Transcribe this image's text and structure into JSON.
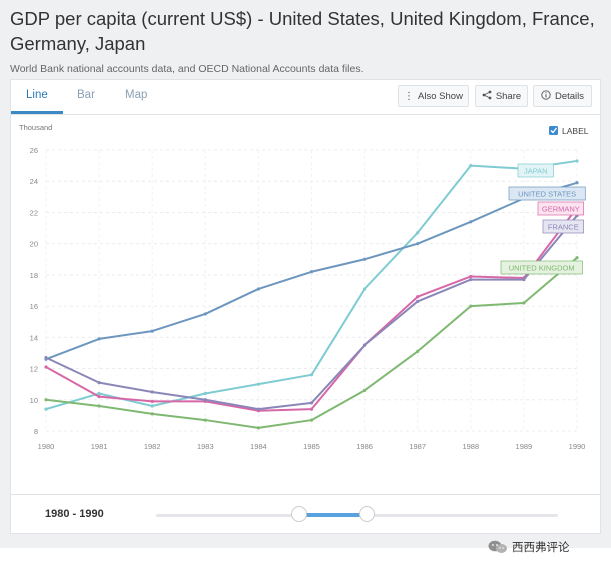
{
  "header": {
    "title": "GDP per capita (current US$) - United States, United Kingdom, France, Germany, Japan",
    "subtitle": "World Bank national accounts data, and OECD National Accounts data files."
  },
  "tabs": [
    {
      "label": "Line",
      "active": true
    },
    {
      "label": "Bar",
      "active": false
    },
    {
      "label": "Map",
      "active": false
    }
  ],
  "toolbar": {
    "also_show": "Also Show",
    "share": "Share",
    "details": "Details"
  },
  "label_toggle": {
    "text": "LABEL",
    "checked": true
  },
  "chart_data": {
    "type": "line",
    "ylabel": "Thousand",
    "x": [
      1980,
      1981,
      1982,
      1983,
      1984,
      1985,
      1986,
      1987,
      1988,
      1989,
      1990
    ],
    "ylim": [
      8,
      26
    ],
    "yticks": [
      8,
      10,
      12,
      14,
      16,
      18,
      20,
      22,
      24,
      26
    ],
    "grid": true,
    "series": [
      {
        "name": "JAPAN",
        "color": "#7fcbd2",
        "values": [
          9.4,
          10.4,
          9.6,
          10.4,
          11.0,
          11.6,
          17.1,
          20.7,
          25.0,
          24.8,
          25.3
        ]
      },
      {
        "name": "UNITED STATES",
        "color": "#6d96bf",
        "values": [
          12.6,
          13.9,
          14.4,
          15.5,
          17.1,
          18.2,
          19.0,
          20.0,
          21.4,
          22.9,
          23.9
        ]
      },
      {
        "name": "GERMANY",
        "color": "#d768a8",
        "values": [
          12.1,
          10.2,
          9.9,
          9.9,
          9.3,
          9.4,
          13.5,
          16.6,
          17.9,
          17.8,
          22.3
        ]
      },
      {
        "name": "FRANCE",
        "color": "#8a87b8",
        "values": [
          12.7,
          11.1,
          10.5,
          10.0,
          9.4,
          9.8,
          13.5,
          16.3,
          17.7,
          17.7,
          21.8
        ]
      },
      {
        "name": "UNITED KINGDOM",
        "color": "#7fb871",
        "values": [
          10.0,
          9.6,
          9.1,
          8.7,
          8.2,
          8.7,
          10.6,
          13.1,
          16.0,
          16.2,
          19.1
        ]
      }
    ]
  },
  "footer": {
    "range_label": "1980 - 1990",
    "slider_range": [
      1980,
      1990
    ]
  },
  "watermark": {
    "text": "西西弗评论"
  }
}
